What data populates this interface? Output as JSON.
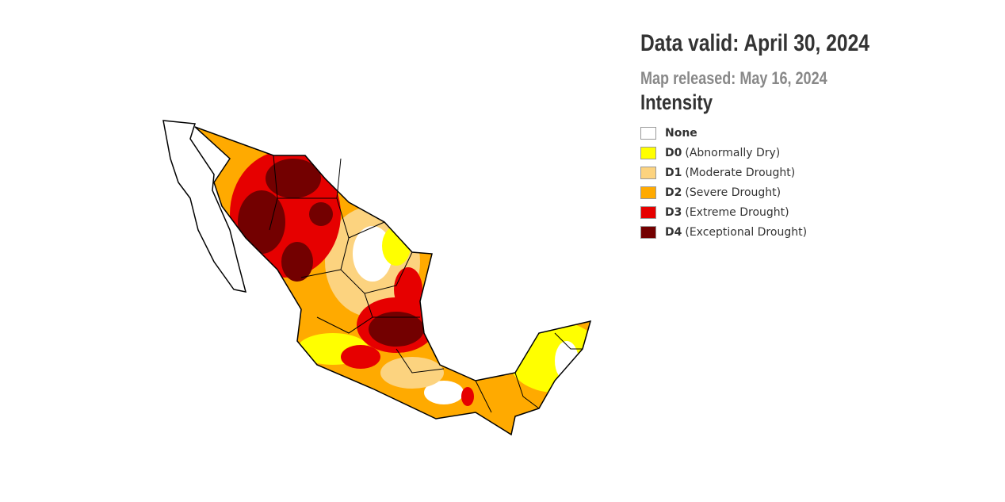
{
  "header": {
    "valid": "Data valid: April 30, 2024",
    "released": "Map released: May 16, 2024"
  },
  "legend": {
    "title": "Intensity",
    "items": [
      {
        "code": "None",
        "color": "#ffffff"
      },
      {
        "code": "D0",
        "label": "(Abnormally Dry)",
        "color": "#ffff00"
      },
      {
        "code": "D1",
        "label": "(Moderate Drought)",
        "color": "#fcd37f"
      },
      {
        "code": "D2",
        "label": "(Severe Drought)",
        "color": "#ffaa00"
      },
      {
        "code": "D3",
        "label": "(Extreme Drought)",
        "color": "#e60000"
      },
      {
        "code": "D4",
        "label": "(Exceptional Drought)",
        "color": "#730000"
      }
    ]
  }
}
